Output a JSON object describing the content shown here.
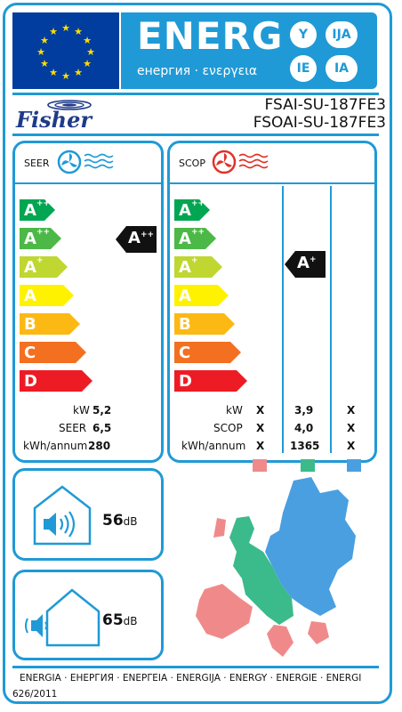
{
  "header": {
    "energy_word": "ENERG",
    "energy_sub": "енергия · ενεργεια",
    "lang_codes": [
      "Y",
      "IJA",
      "IE",
      "IA"
    ]
  },
  "brand": {
    "name": "Fisher",
    "indoor_model": "FSAI-SU-187FE3",
    "outdoor_model": "FSOAI-SU-187FE3"
  },
  "scale_classes": [
    {
      "letter": "A",
      "sup": "+++",
      "color": "#00a651"
    },
    {
      "letter": "A",
      "sup": "++",
      "color": "#4cb847"
    },
    {
      "letter": "A",
      "sup": "+",
      "color": "#bfd730"
    },
    {
      "letter": "A",
      "sup": "",
      "color": "#fff200"
    },
    {
      "letter": "B",
      "sup": "",
      "color": "#fdb913"
    },
    {
      "letter": "C",
      "sup": "",
      "color": "#f37021"
    },
    {
      "letter": "D",
      "sup": "",
      "color": "#ed1c24"
    }
  ],
  "cooling": {
    "title": "SEER",
    "rating": {
      "letter": "A",
      "sup": "++"
    },
    "rows": [
      {
        "label": "kW",
        "value": "5,2"
      },
      {
        "label": "SEER",
        "value": "6,5"
      },
      {
        "label": "kWh/annum",
        "value": "280"
      }
    ]
  },
  "heating": {
    "title": "SCOP",
    "rating": {
      "letter": "A",
      "sup": "+"
    },
    "rows": [
      {
        "label": "kW",
        "warm": "X",
        "average": "3,9",
        "cold": "X"
      },
      {
        "label": "SCOP",
        "warm": "X",
        "average": "4,0",
        "cold": "X"
      },
      {
        "label": "kWh/annum",
        "warm": "X",
        "average": "1365",
        "cold": "X"
      }
    ],
    "zone_colors": [
      "#f08a8a",
      "#3bba8c",
      "#4a9fe0"
    ]
  },
  "noise": {
    "indoor": {
      "value": "56",
      "unit": "dB"
    },
    "outdoor": {
      "value": "65",
      "unit": "dB"
    }
  },
  "footer": {
    "languages": "ENERGIA · ЕНЕРГИЯ · ΕΝΕΡΓΕΙΑ · ENERGIJA · ENERGY · ENERGIE · ENERGI",
    "regulation": "626/2011"
  }
}
